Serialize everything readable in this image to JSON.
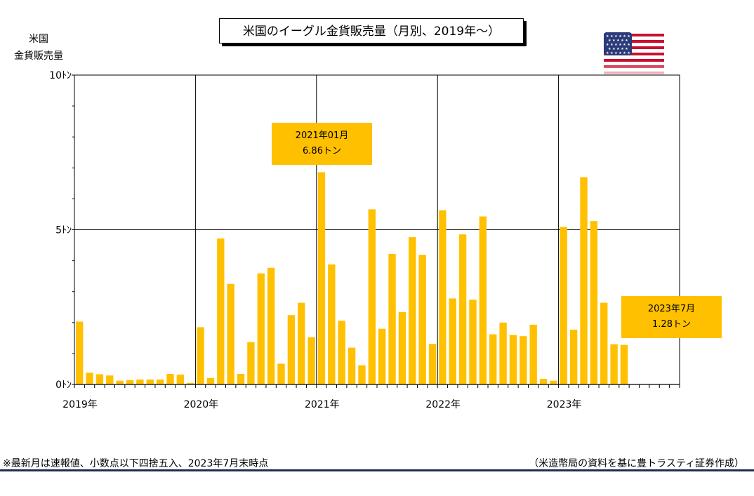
{
  "chart_data": {
    "type": "bar",
    "title": "米国のイーグル金貨販売量（月別、2019年～）",
    "ylabel": [
      "米国",
      "金貨販売量"
    ],
    "ylim": [
      0,
      10
    ],
    "yticks": [
      {
        "value": 0,
        "label": "0ﾄﾝ"
      },
      {
        "value": 5,
        "label": "5ﾄﾝ"
      },
      {
        "value": 10,
        "label": "10ﾄﾝ"
      }
    ],
    "year_labels": [
      "2019年",
      "2020年",
      "2021年",
      "2022年",
      "2023年"
    ],
    "months_total": 60,
    "bar_color": "#ffc000",
    "grid": true,
    "values": [
      2.03,
      0.38,
      0.33,
      0.29,
      0.12,
      0.14,
      0.16,
      0.16,
      0.16,
      0.34,
      0.32,
      0.05,
      1.85,
      0.21,
      4.72,
      3.25,
      0.34,
      1.37,
      3.59,
      3.77,
      0.67,
      2.24,
      2.64,
      1.53,
      6.86,
      3.88,
      2.06,
      1.19,
      0.62,
      5.66,
      1.8,
      4.22,
      2.34,
      4.76,
      4.19,
      1.31,
      5.63,
      2.78,
      4.85,
      2.74,
      5.43,
      1.62,
      2.0,
      1.6,
      1.56,
      1.93,
      0.18,
      0.12,
      5.09,
      1.77,
      6.7,
      5.28,
      2.64,
      1.3,
      1.28
    ],
    "annotations": [
      {
        "line1": "2021年01月",
        "line2": "6.86トン"
      },
      {
        "line1": "2023年7月",
        "line2": "1.28トン"
      }
    ]
  },
  "footnote": "※最新月は速報値、小数点以下四捨五入、2023年7月末時点",
  "source": "（米造幣局の資料を基に豊トラスティ証券作成）",
  "flag_icon": "us-flag-icon"
}
